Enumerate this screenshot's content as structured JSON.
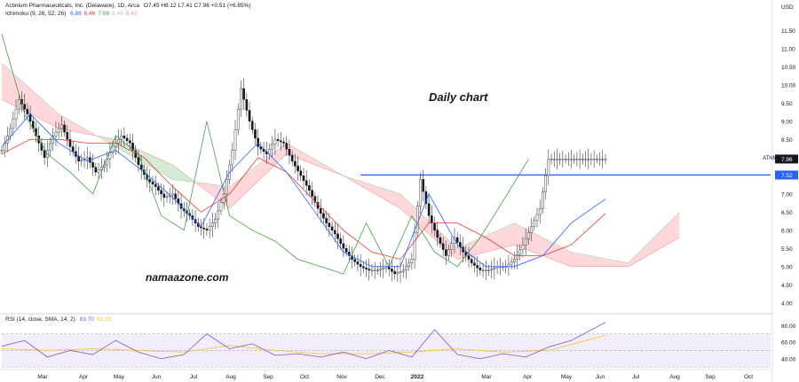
{
  "header": {
    "symbol_line": "Actinium Pharmaceuticals, Inc. (Delaware), 1D, Arca",
    "ohlc": "O7.45 H8.12 L7.41 C7.96 +0.51 (+6.85%)",
    "ichimoku_label": "Ichimoku (9, 26, 52, 26)",
    "ichimoku_values": [
      {
        "text": "6.86",
        "color": "#2962ff"
      },
      {
        "text": "6.46",
        "color": "#e53935"
      },
      {
        "text": "7.96",
        "color": "#43a047"
      },
      {
        "text": "6.46",
        "color": "#a5d6a7"
      },
      {
        "text": "6.43",
        "color": "#ef9a9a"
      }
    ],
    "rsi_label": "RSI (14, close, SMA, 14, 2)",
    "rsi_values": [
      {
        "text": "83.70",
        "color": "#7e57c2"
      },
      {
        "text": "68.25",
        "color": "#fbc02d"
      }
    ]
  },
  "annotations": {
    "daily_chart": "Daily chart",
    "watermark": "namaazone.com",
    "ticker_label": "ATNM"
  },
  "colors": {
    "up_down_bar": "#131722",
    "tenkan": "#2962ff",
    "kijun": "#e53935",
    "chikou": "#43a047",
    "cloud_bull": "#c8e6c9",
    "cloud_bear": "#ffcdd2",
    "hline": "#2962ff",
    "rsi": "#7e57c2",
    "rsi_ma": "#fbc02d",
    "rsi_band": "#ede7f6"
  },
  "chart_data": [
    {
      "type": "line",
      "pane": "price",
      "currency": "USD",
      "ylim": [
        3.8,
        11.8
      ],
      "y_ticks": [
        "4.00",
        "4.50",
        "5.00",
        "5.50",
        "6.00",
        "6.50",
        "7.00",
        "7.50",
        "8.00",
        "8.50",
        "9.00",
        "9.50",
        "10.00",
        "10.50",
        "11.00",
        "11.50"
      ],
      "x_ticks": [
        "Mar",
        "Apr",
        "May",
        "Jun",
        "Jul",
        "Aug",
        "Sep",
        "Oct",
        "Nov",
        "Dec",
        "2022",
        "Mar",
        "Apr",
        "May",
        "Jun",
        "Jul",
        "Aug",
        "Sep",
        "Oct"
      ],
      "price_labels": [
        {
          "text": "7.96",
          "value": 7.96,
          "color": "#131722"
        },
        {
          "text": "7.52",
          "value": 7.52,
          "color": "#2962ff"
        }
      ],
      "horizontal_line": {
        "value": 7.52
      },
      "series": [
        {
          "key": "close",
          "x": [
            0,
            3,
            6,
            9,
            12,
            15,
            18,
            21,
            24,
            27,
            30,
            33,
            36,
            39,
            42,
            45,
            48,
            51,
            54,
            57,
            60,
            63,
            66,
            69,
            72,
            75,
            78,
            81,
            84,
            87,
            90,
            93,
            96,
            99,
            102,
            105,
            108,
            111,
            114,
            117,
            120,
            123,
            126,
            129,
            132,
            135,
            138,
            141,
            144,
            147,
            150,
            153,
            156,
            159,
            162,
            165,
            168,
            171,
            174,
            177,
            180,
            183,
            186,
            189,
            192,
            195,
            198,
            201,
            204,
            207,
            210,
            213,
            216,
            219,
            222,
            225,
            228,
            231,
            234,
            237,
            240,
            243,
            246,
            249,
            252,
            255,
            258,
            261,
            264,
            267,
            270
          ],
          "y": [
            8.2,
            8.8,
            9.6,
            9.2,
            8.6,
            8.0,
            8.6,
            8.9,
            8.3,
            7.9,
            8.0,
            7.6,
            7.8,
            8.3,
            8.6,
            8.4,
            7.8,
            7.4,
            7.2,
            6.9,
            7.0,
            6.6,
            6.4,
            6.1,
            6.0,
            6.3,
            7.0,
            8.2,
            9.9,
            9.0,
            8.3,
            8.1,
            8.5,
            8.4,
            7.9,
            7.5,
            7.1,
            6.6,
            6.2,
            5.9,
            5.5,
            5.2,
            5.0,
            4.9,
            4.9,
            5.0,
            4.8,
            4.9,
            5.2,
            7.4,
            6.4,
            5.8,
            5.3,
            5.8,
            5.4,
            5.1,
            4.9,
            4.9,
            5.0,
            5.0,
            5.2,
            5.6,
            6.1,
            6.6,
            7.96,
            7.96,
            7.96,
            7.96,
            7.96,
            7.96,
            7.96,
            7.96,
            7.96,
            7.96,
            7.96,
            7.96,
            7.96,
            7.96,
            7.96,
            7.96,
            7.96,
            7.96,
            7.96,
            7.96,
            7.96,
            7.96,
            7.96,
            7.96,
            7.96,
            7.96,
            7.96
          ]
        },
        {
          "key": "tenkan",
          "x": [
            0,
            10,
            20,
            30,
            40,
            50,
            60,
            70,
            80,
            90,
            100,
            110,
            120,
            130,
            140,
            150,
            160,
            170,
            180,
            190,
            200,
            212
          ],
          "y": [
            8.3,
            9.2,
            8.4,
            7.9,
            8.2,
            7.6,
            6.9,
            6.1,
            7.6,
            8.4,
            7.6,
            6.5,
            5.4,
            5.0,
            5.0,
            7.0,
            5.6,
            5.0,
            5.0,
            5.3,
            6.2,
            6.86
          ]
        },
        {
          "key": "kijun",
          "x": [
            0,
            10,
            20,
            30,
            40,
            50,
            60,
            70,
            80,
            90,
            100,
            110,
            120,
            130,
            140,
            150,
            160,
            170,
            180,
            190,
            200,
            212
          ],
          "y": [
            8.1,
            8.5,
            8.5,
            8.4,
            8.4,
            8.0,
            7.2,
            6.5,
            7.0,
            8.0,
            7.6,
            6.8,
            6.0,
            5.4,
            5.2,
            6.2,
            6.2,
            5.8,
            5.3,
            5.3,
            5.6,
            6.46
          ]
        },
        {
          "key": "chikou",
          "x": [
            0,
            8,
            16,
            24,
            32,
            40,
            48,
            56,
            64,
            72,
            80,
            88,
            96,
            104,
            112,
            120,
            128,
            136,
            144,
            152,
            160,
            168,
            176,
            185
          ],
          "y": [
            11.4,
            9.2,
            8.1,
            7.6,
            7.0,
            8.6,
            8.1,
            6.4,
            6.0,
            9.0,
            6.4,
            6.0,
            5.7,
            5.2,
            5.0,
            4.8,
            6.2,
            5.0,
            6.4,
            5.4,
            5.0,
            5.8,
            6.8,
            7.96
          ]
        },
        {
          "key": "span_a",
          "x": [
            0,
            20,
            40,
            60,
            80,
            100,
            120,
            140,
            160,
            180,
            200,
            220,
            238
          ],
          "y": [
            10.6,
            9.2,
            8.3,
            7.4,
            7.2,
            8.4,
            7.5,
            7.0,
            5.5,
            6.2,
            5.4,
            5.1,
            6.5
          ]
        },
        {
          "key": "span_b",
          "x": [
            0,
            20,
            40,
            60,
            80,
            100,
            120,
            140,
            160,
            180,
            200,
            220,
            238
          ],
          "y": [
            9.6,
            8.8,
            8.5,
            7.8,
            6.6,
            8.1,
            7.5,
            6.6,
            5.2,
            5.6,
            5.0,
            5.0,
            5.8
          ]
        }
      ]
    },
    {
      "type": "line",
      "pane": "rsi",
      "ylim": [
        28,
        92
      ],
      "y_ticks": [
        "40.00",
        "60.00",
        "80.00"
      ],
      "band": [
        30,
        70
      ],
      "series": [
        {
          "key": "rsi",
          "x": [
            0,
            8,
            16,
            24,
            32,
            40,
            48,
            56,
            64,
            72,
            80,
            88,
            96,
            104,
            112,
            120,
            128,
            136,
            144,
            152,
            160,
            168,
            176,
            184,
            192,
            200,
            212
          ],
          "y": [
            55,
            62,
            42,
            50,
            45,
            62,
            48,
            40,
            45,
            70,
            52,
            58,
            44,
            46,
            42,
            48,
            40,
            50,
            42,
            75,
            45,
            40,
            46,
            42,
            54,
            62,
            83.7
          ]
        },
        {
          "key": "rsi_ma",
          "x": [
            0,
            16,
            32,
            48,
            64,
            80,
            96,
            112,
            128,
            144,
            160,
            176,
            192,
            212
          ],
          "y": [
            52,
            50,
            52,
            50,
            48,
            56,
            50,
            46,
            46,
            48,
            52,
            48,
            50,
            68.25
          ]
        }
      ]
    }
  ]
}
